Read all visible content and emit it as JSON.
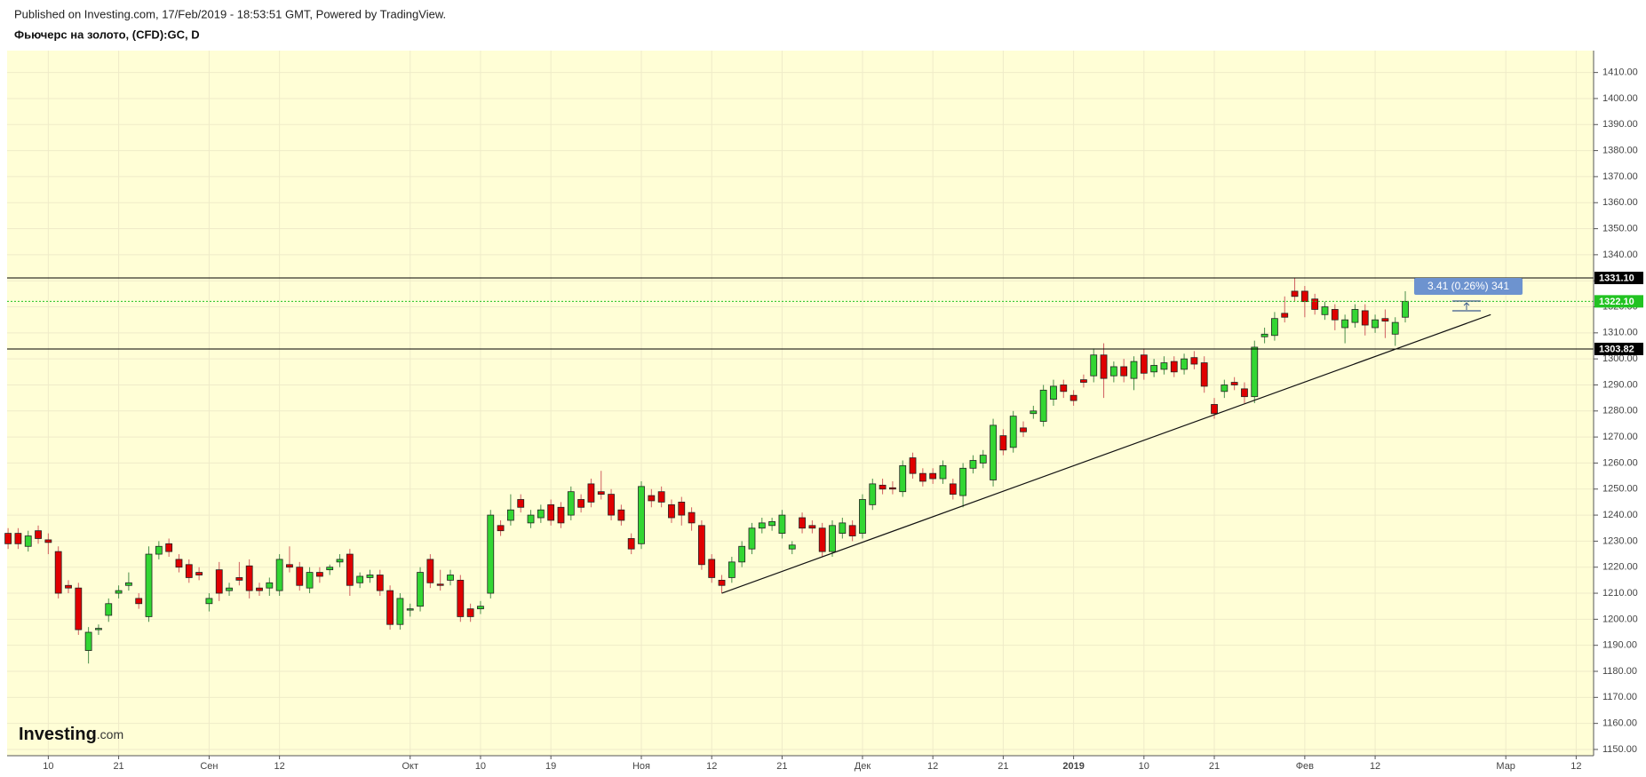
{
  "header": {
    "published": "Published on Investing.com, 17/Feb/2019 - 18:53:51 GMT, Powered by TradingView.",
    "title": "Фьючерс на золото, (CFD):GC, D"
  },
  "logo": {
    "name": "Investing",
    "suffix": ".com"
  },
  "chart_data": {
    "type": "candlestick",
    "categories": [
      null,
      null,
      null,
      null,
      "10",
      null,
      null,
      null,
      null,
      null,
      null,
      "21",
      null,
      null,
      null,
      null,
      null,
      null,
      null,
      null,
      "Сен",
      null,
      null,
      null,
      null,
      null,
      null,
      "12",
      null,
      null,
      null,
      null,
      null,
      null,
      null,
      null,
      null,
      null,
      null,
      null,
      "Окт",
      null,
      null,
      null,
      null,
      null,
      null,
      "10",
      null,
      null,
      null,
      null,
      null,
      null,
      "19",
      null,
      null,
      null,
      null,
      null,
      null,
      null,
      null,
      "Ноя",
      null,
      null,
      null,
      null,
      null,
      null,
      "12",
      null,
      null,
      null,
      null,
      null,
      null,
      "21",
      null,
      null,
      null,
      null,
      null,
      null,
      null,
      "Дек",
      null,
      null,
      null,
      null,
      null,
      null,
      "12",
      null,
      null,
      null,
      null,
      null,
      null,
      "21",
      null,
      null,
      null,
      null,
      null,
      null,
      "2019",
      null,
      null,
      null,
      null,
      null,
      null,
      "10",
      null,
      null,
      null,
      null,
      null,
      null,
      "21",
      null,
      null,
      null,
      null,
      null,
      null,
      null,
      null,
      "Фев",
      null,
      null,
      null,
      null,
      null,
      null,
      "12",
      null,
      null,
      null,
      null,
      null,
      null,
      null,
      null,
      null,
      null,
      null,
      null,
      "Мар",
      null,
      null,
      null,
      null,
      null,
      null,
      "12",
      null
    ],
    "open": [
      1233,
      1233,
      1228,
      1234,
      1230.5,
      1226,
      1213,
      1212,
      1188,
      1196,
      1201.5,
      1210,
      1213,
      1208,
      1201,
      1225,
      1229,
      1223,
      1221,
      1218,
      1206,
      1219,
      1211,
      1216,
      1220.5,
      1212,
      1212,
      1211,
      1221,
      1220,
      1212,
      1218,
      1219,
      1222,
      1225,
      1214,
      1216,
      1217,
      1211,
      1198,
      1203.5,
      1205,
      1223,
      1213.5,
      1215,
      1215,
      1204,
      1204,
      1210,
      1236,
      1238,
      1246,
      1237,
      1239,
      1244,
      1243,
      1240,
      1246,
      1252,
      1249,
      1248,
      1242,
      1231,
      1229,
      1247.5,
      1249,
      1244,
      1245,
      1241,
      1236,
      1223,
      1215,
      1216,
      1222,
      1227,
      1235,
      1236,
      1233,
      1227,
      1239,
      1236,
      1235,
      1226,
      1233,
      1236,
      1233,
      1244,
      1251.5,
      1250.5,
      1249,
      1262,
      1256,
      1256,
      1254,
      1252,
      1247.5,
      1258,
      1260,
      1253.5,
      1270.5,
      1266,
      1273.5,
      1279,
      1276,
      1284.5,
      1290,
      1286,
      1292,
      1293.5,
      1301.5,
      1293.5,
      1297,
      1292.5,
      1301.5,
      1295,
      1296,
      1299,
      1296,
      1300.5,
      1298.5,
      1282.5,
      1287.5,
      1291,
      1288.5,
      1285.5,
      1308.5,
      1309,
      1317.5,
      1326,
      1326,
      1323,
      1317,
      1319,
      1312,
      1314,
      1318.5,
      1312,
      1315.5,
      1309.5,
      1316,
      null,
      null,
      null,
      null,
      null,
      null,
      null,
      null,
      null,
      null,
      null,
      null,
      null,
      null,
      null,
      null,
      null,
      null
    ],
    "high": [
      1235,
      1235,
      1234,
      1236,
      1233,
      1228,
      1215,
      1214,
      1197,
      1198,
      1208,
      1213,
      1218,
      1210,
      1228,
      1230,
      1231,
      1225,
      1223,
      1220,
      1210,
      1222,
      1214,
      1222,
      1223,
      1214,
      1216,
      1225,
      1228,
      1222,
      1220,
      1220,
      1221,
      1225,
      1227,
      1218,
      1219,
      1219,
      1213,
      1210,
      1206,
      1220,
      1225,
      1219,
      1219,
      1217,
      1206,
      1207,
      1242,
      1238,
      1248,
      1248,
      1242,
      1244,
      1246,
      1245,
      1251,
      1248,
      1254,
      1257,
      1250,
      1244,
      1233,
      1253,
      1250,
      1251,
      1246,
      1247,
      1243,
      1238,
      1225,
      1217,
      1224,
      1230,
      1237,
      1239,
      1239,
      1242,
      1230,
      1241,
      1238,
      1237,
      1238,
      1239,
      1238,
      1248,
      1254,
      1254,
      1253,
      1261,
      1264,
      1258,
      1258,
      1261,
      1254,
      1260,
      1263,
      1265,
      1277,
      1273,
      1280,
      1276,
      1282,
      1290,
      1292,
      1292,
      1288,
      1294,
      1304,
      1306,
      1299,
      1300,
      1301,
      1304,
      1300,
      1301,
      1301,
      1302,
      1303,
      1301,
      1285,
      1292,
      1293,
      1291,
      1307,
      1312,
      1318,
      1324,
      1331,
      1328,
      1325,
      1322,
      1321,
      1317,
      1321,
      1321,
      1317,
      1319,
      1316,
      1326,
      null,
      null,
      null,
      null,
      null,
      null,
      null,
      null,
      null,
      null,
      null,
      null,
      null,
      null,
      null,
      null,
      null,
      null
    ],
    "low": [
      1227,
      1227,
      1226,
      1229,
      1225,
      1208,
      1210,
      1194,
      1183,
      1194,
      1199,
      1208,
      1211,
      1204,
      1199,
      1223,
      1224,
      1218,
      1214,
      1215,
      1203,
      1207,
      1209,
      1213,
      1208,
      1209,
      1209,
      1209,
      1218,
      1211,
      1210,
      1214,
      1217,
      1220,
      1209,
      1212,
      1214,
      1209,
      1196,
      1196,
      1201,
      1203,
      1212,
      1211,
      1213,
      1199,
      1199,
      1202,
      1208,
      1232,
      1236,
      1241,
      1235,
      1237,
      1236,
      1235,
      1238,
      1241,
      1243,
      1246,
      1238,
      1236,
      1225,
      1227,
      1243,
      1243,
      1237,
      1236,
      1234,
      1219,
      1214,
      1210,
      1214,
      1220,
      1225,
      1233,
      1234,
      1231,
      1225,
      1233,
      1233,
      1224,
      1224,
      1231,
      1230,
      1231,
      1242,
      1248,
      1248,
      1247,
      1254,
      1251,
      1252,
      1252,
      1246,
      1243,
      1256,
      1258,
      1251,
      1263,
      1264,
      1270,
      1277,
      1274,
      1282,
      1285,
      1282,
      1289,
      1291,
      1285,
      1291,
      1291,
      1288,
      1292,
      1293,
      1294,
      1293,
      1294,
      1296,
      1287,
      1277,
      1285,
      1288,
      1283,
      1283,
      1306,
      1307,
      1314,
      1322,
      1316,
      1317,
      1315,
      1311,
      1306,
      1312,
      1309,
      1310,
      1308,
      1305,
      1314,
      null,
      null,
      null,
      null,
      null,
      null,
      null,
      null,
      null,
      null,
      null,
      null,
      null,
      null,
      null,
      null,
      null,
      null
    ],
    "close": [
      1229,
      1229,
      1232,
      1231,
      1229.5,
      1210,
      1212,
      1196,
      1195,
      1196.5,
      1206,
      1211,
      1214,
      1206,
      1225,
      1228,
      1226,
      1220,
      1216,
      1217,
      1208,
      1210,
      1212,
      1215,
      1211,
      1211,
      1214,
      1223,
      1220,
      1213,
      1218,
      1216.5,
      1220,
      1223,
      1213,
      1216.5,
      1217,
      1211,
      1198,
      1208,
      1204,
      1218,
      1214,
      1213,
      1217,
      1201,
      1201,
      1205,
      1240,
      1234,
      1242,
      1243,
      1240,
      1242,
      1238,
      1237,
      1249,
      1243,
      1245,
      1248,
      1240,
      1238,
      1227,
      1251,
      1245.5,
      1245,
      1239,
      1240,
      1237,
      1221,
      1216,
      1213,
      1222,
      1228,
      1235,
      1237,
      1237.5,
      1240,
      1228.5,
      1235,
      1235,
      1226,
      1236,
      1237,
      1232,
      1246,
      1252,
      1250,
      1250,
      1259,
      1256,
      1253,
      1254,
      1259,
      1248,
      1258,
      1261,
      1263,
      1274.5,
      1265,
      1278,
      1272,
      1280,
      1288,
      1289.5,
      1287.5,
      1284,
      1291,
      1301.5,
      1292.5,
      1297,
      1293.5,
      1299,
      1294.5,
      1297.5,
      1298.5,
      1295,
      1300,
      1298,
      1289.5,
      1279,
      1290,
      1290,
      1285.5,
      1304.5,
      1309.5,
      1315.5,
      1316,
      1324,
      1322,
      1319,
      1320,
      1315,
      1315,
      1319,
      1313,
      1315,
      1314.5,
      1314,
      1322.1,
      null,
      null,
      null,
      null,
      null,
      null,
      null,
      null,
      null,
      null,
      null,
      null,
      null,
      null,
      null,
      null,
      null,
      null
    ],
    "up_color": "#33d633",
    "down_color": "#e00000",
    "ylim": [
      1147.6,
      1418.4
    ],
    "yticks": [
      {
        "value": 1150,
        "label": "1150.00"
      },
      {
        "value": 1160,
        "label": "1160.00"
      },
      {
        "value": 1170,
        "label": "1170.00"
      },
      {
        "value": 1180,
        "label": "1180.00"
      },
      {
        "value": 1190,
        "label": "1190.00"
      },
      {
        "value": 1200,
        "label": "1200.00"
      },
      {
        "value": 1210,
        "label": "1210.00"
      },
      {
        "value": 1220,
        "label": "1220.00"
      },
      {
        "value": 1230,
        "label": "1230.00"
      },
      {
        "value": 1240,
        "label": "1240.00"
      },
      {
        "value": 1250,
        "label": "1250.00"
      },
      {
        "value": 1260,
        "label": "1260.00"
      },
      {
        "value": 1270,
        "label": "1270.00"
      },
      {
        "value": 1280,
        "label": "1280.00"
      },
      {
        "value": 1290,
        "label": "1290.00"
      },
      {
        "value": 1300,
        "label": "1300.00"
      },
      {
        "value": 1310,
        "label": "1310.00"
      },
      {
        "value": 1320,
        "label": "1320.00"
      },
      {
        "value": 1330,
        "label": "1330.00"
      },
      {
        "value": 1340,
        "label": "1340.00"
      },
      {
        "value": 1350,
        "label": "1350.00"
      },
      {
        "value": 1360,
        "label": "1360.00"
      },
      {
        "value": 1370,
        "label": "1370.00"
      },
      {
        "value": 1380,
        "label": "1380.00"
      },
      {
        "value": 1390,
        "label": "1390.00"
      },
      {
        "value": 1400,
        "label": "1400.00"
      },
      {
        "value": 1410,
        "label": "1410.00"
      }
    ],
    "grid": true,
    "hlines": [
      {
        "value": 1331.1,
        "label": "1331.10",
        "color": "#000000",
        "dashed": false
      },
      {
        "value": 1322.1,
        "label": "1322.10",
        "color": "#22c322",
        "dashed": true
      },
      {
        "value": 1303.82,
        "label": "1303.82",
        "color": "#000000",
        "dashed": false
      }
    ],
    "trendline": {
      "start": {
        "index": 71,
        "price": 1210
      },
      "end": {
        "index": 147.5,
        "price": 1317
      }
    },
    "annotation": "3.41 (0.26%) 341"
  }
}
